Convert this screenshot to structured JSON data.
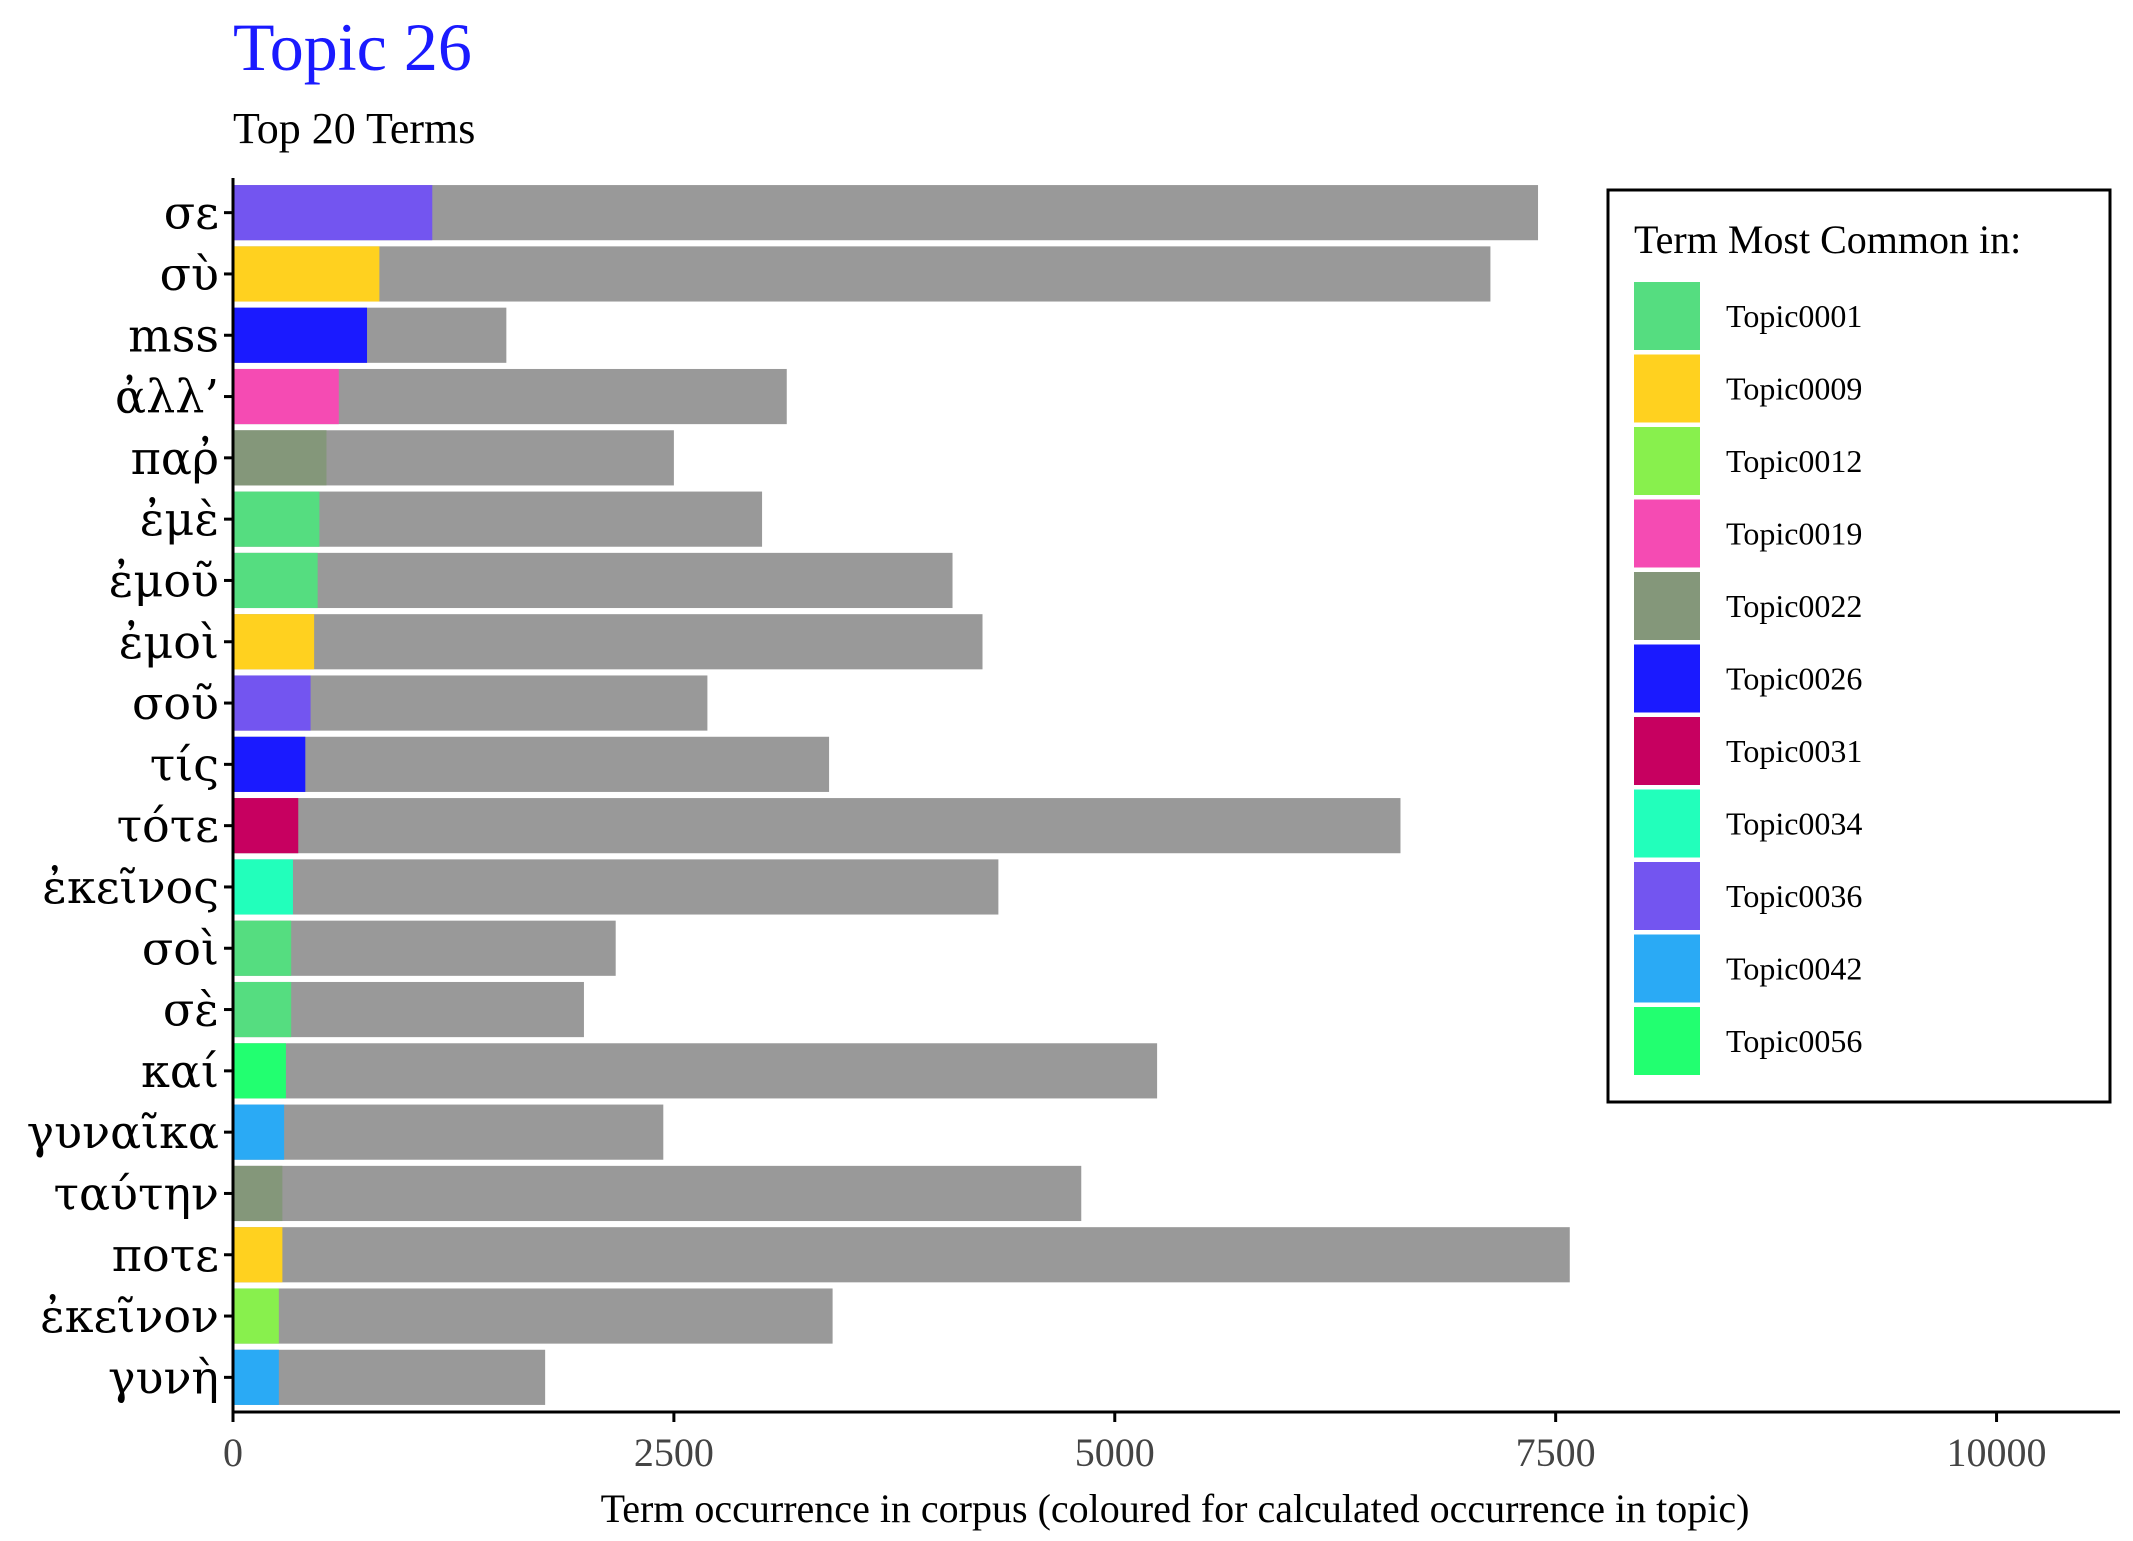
{
  "chart_data": {
    "type": "bar",
    "orientation": "horizontal",
    "title": "Topic 26",
    "subtitle": "Top 20 Terms",
    "xlabel": "Term occurrence in corpus (coloured for calculated occurrence in topic)",
    "ylabel": "",
    "xlim": [
      0,
      10700
    ],
    "xticks": [
      0,
      2500,
      5000,
      7500,
      10000
    ],
    "xtick_labels": [
      "0",
      "2500",
      "5000",
      "7500",
      "10000"
    ],
    "grid": false,
    "legend_position": "top-right",
    "legend_title": "Term Most Common in:",
    "colors": {
      "title": "#1a1aff",
      "corpus_bar": "#999999",
      "Topic0001": "#55dd80",
      "Topic0009": "#ffd11f",
      "Topic0012": "#88f04d",
      "Topic0019": "#f54bb3",
      "Topic0022": "#84977a",
      "Topic0026": "#1a1aff",
      "Topic0031": "#c70060",
      "Topic0034": "#22ffbb",
      "Topic0036": "#7355f0",
      "Topic0042": "#2aaaf5",
      "Topic0056": "#22ff70"
    },
    "legend_entries": [
      "Topic0001",
      "Topic0009",
      "Topic0012",
      "Topic0019",
      "Topic0022",
      "Topic0026",
      "Topic0031",
      "Topic0034",
      "Topic0036",
      "Topic0042",
      "Topic0056"
    ],
    "terms": [
      {
        "term": "σε",
        "corpus": 7400,
        "topic_value": 1130,
        "topic": "Topic0036"
      },
      {
        "term": "σὺ",
        "corpus": 7130,
        "topic_value": 830,
        "topic": "Topic0009"
      },
      {
        "term": "mss",
        "corpus": 1550,
        "topic_value": 760,
        "topic": "Topic0026"
      },
      {
        "term": "ἀλλ’",
        "corpus": 3140,
        "topic_value": 600,
        "topic": "Topic0019"
      },
      {
        "term": "παῤ",
        "corpus": 2500,
        "topic_value": 530,
        "topic": "Topic0022"
      },
      {
        "term": "ἐμὲ",
        "corpus": 3000,
        "topic_value": 490,
        "topic": "Topic0001"
      },
      {
        "term": "ἐμοῦ",
        "corpus": 4080,
        "topic_value": 480,
        "topic": "Topic0001"
      },
      {
        "term": "ἐμοὶ",
        "corpus": 4250,
        "topic_value": 460,
        "topic": "Topic0009"
      },
      {
        "term": "σοῦ",
        "corpus": 2690,
        "topic_value": 440,
        "topic": "Topic0036"
      },
      {
        "term": "τίς",
        "corpus": 3380,
        "topic_value": 410,
        "topic": "Topic0026"
      },
      {
        "term": "τότε",
        "corpus": 6620,
        "topic_value": 370,
        "topic": "Topic0031"
      },
      {
        "term": "ἐκεῖνος",
        "corpus": 4340,
        "topic_value": 340,
        "topic": "Topic0034"
      },
      {
        "term": "σοὶ",
        "corpus": 2170,
        "topic_value": 330,
        "topic": "Topic0001"
      },
      {
        "term": "σὲ",
        "corpus": 1990,
        "topic_value": 330,
        "topic": "Topic0001"
      },
      {
        "term": "καί",
        "corpus": 5240,
        "topic_value": 300,
        "topic": "Topic0056"
      },
      {
        "term": "γυναῖκα",
        "corpus": 2440,
        "topic_value": 290,
        "topic": "Topic0042"
      },
      {
        "term": "ταύτην",
        "corpus": 4810,
        "topic_value": 280,
        "topic": "Topic0022"
      },
      {
        "term": "ποτε",
        "corpus": 7580,
        "topic_value": 280,
        "topic": "Topic0009"
      },
      {
        "term": "ἐκεῖνον",
        "corpus": 3400,
        "topic_value": 260,
        "topic": "Topic0012"
      },
      {
        "term": "γυνὴ",
        "corpus": 1770,
        "topic_value": 260,
        "topic": "Topic0042"
      }
    ]
  }
}
